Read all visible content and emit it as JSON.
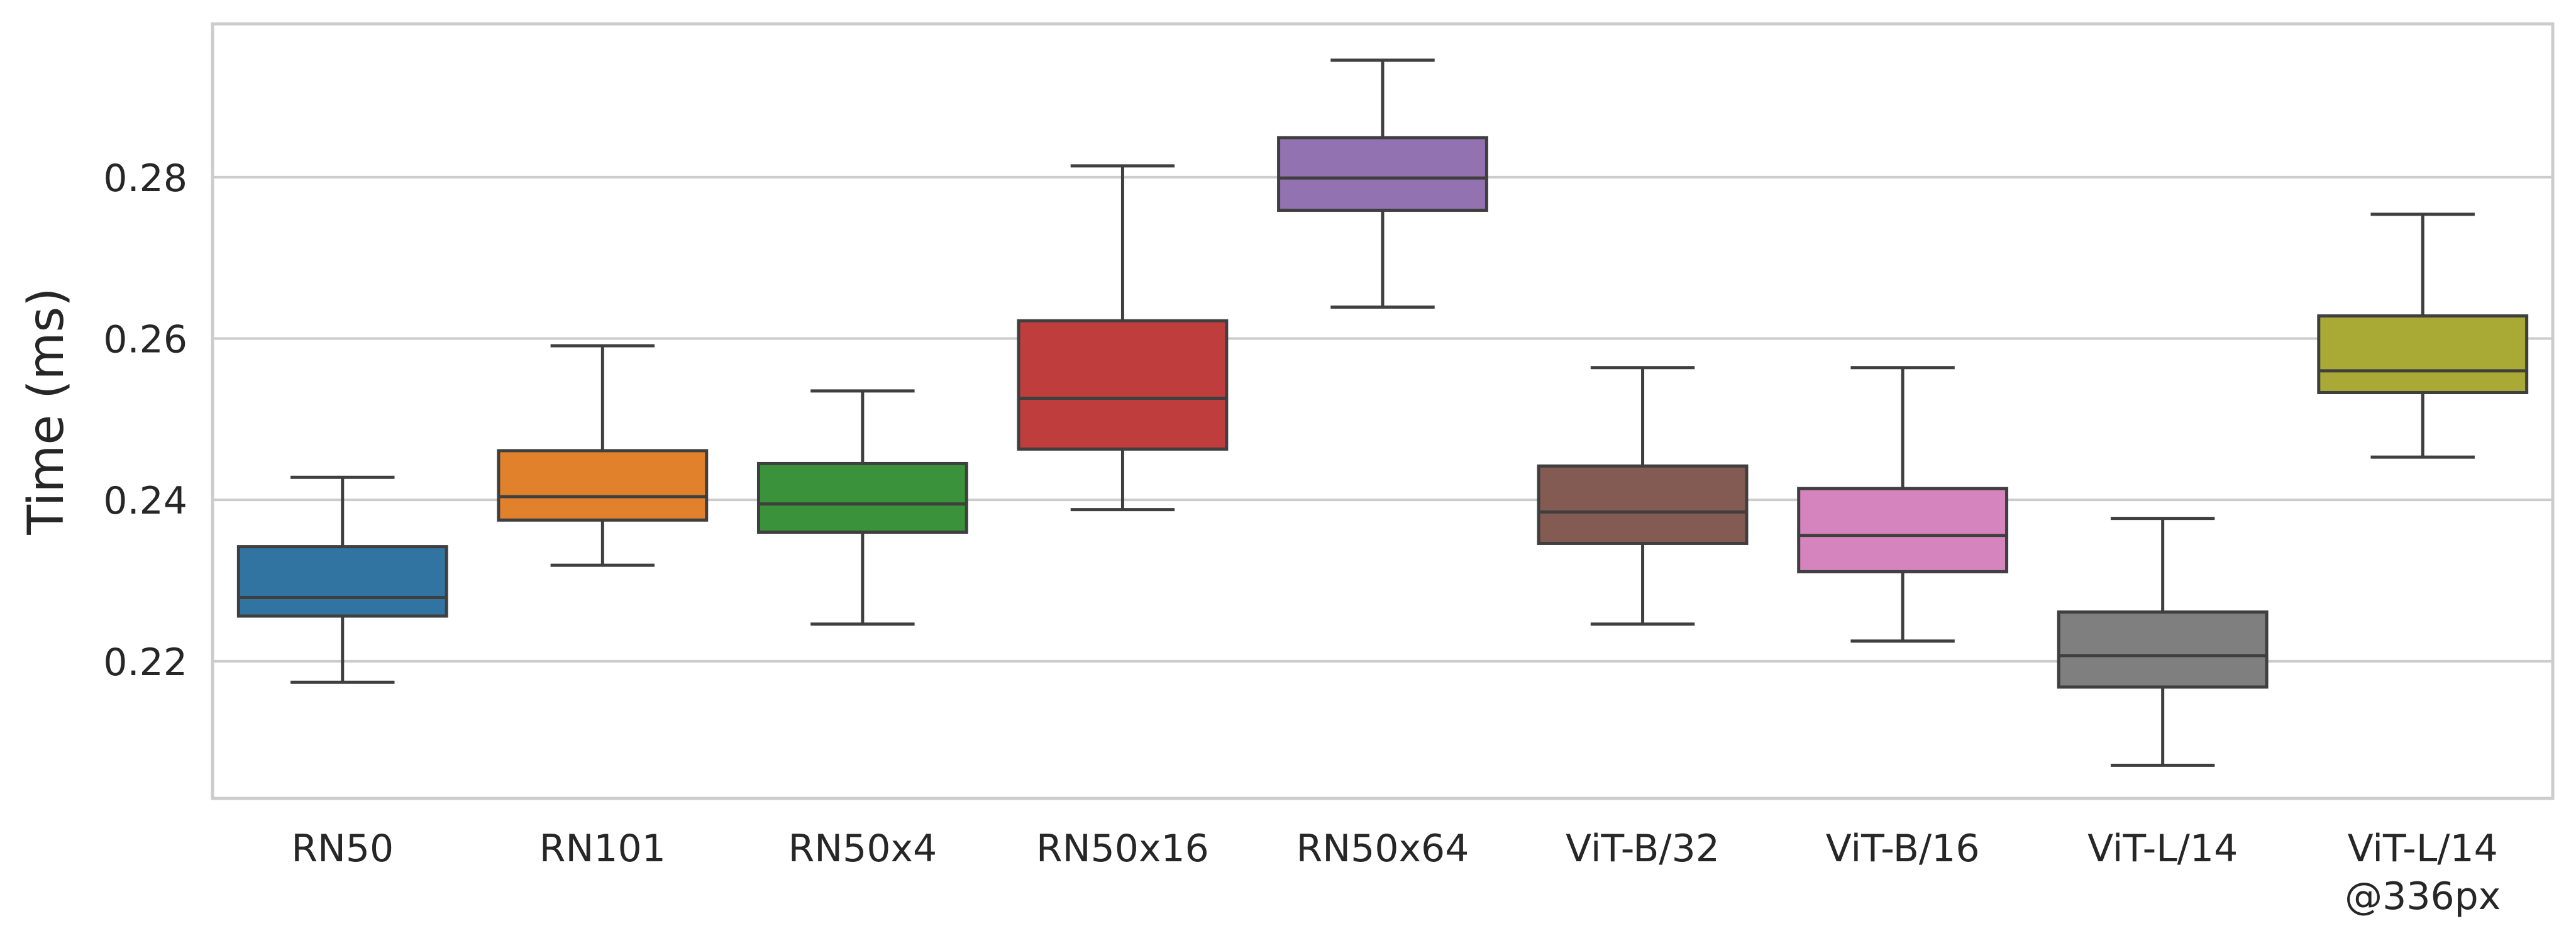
{
  "chart_data": {
    "type": "box",
    "title": "",
    "xlabel": "",
    "ylabel": "Time (ms)",
    "ylim": [
      0.203,
      0.299
    ],
    "yticks": [
      "0.22",
      "0.24",
      "0.26",
      "0.28"
    ],
    "grid": "horizontal",
    "categories": [
      {
        "lines": [
          "RN50"
        ]
      },
      {
        "lines": [
          "RN101"
        ]
      },
      {
        "lines": [
          "RN50x4"
        ]
      },
      {
        "lines": [
          "RN50x16"
        ]
      },
      {
        "lines": [
          "RN50x64"
        ]
      },
      {
        "lines": [
          "ViT-B/32"
        ]
      },
      {
        "lines": [
          "ViT-B/16"
        ]
      },
      {
        "lines": [
          "ViT-L/14"
        ]
      },
      {
        "lines": [
          "ViT-L/14",
          "@336px"
        ]
      }
    ],
    "boxes": [
      {
        "whislo": 0.2174,
        "q1": 0.2256,
        "med": 0.2279,
        "q3": 0.2342,
        "whishi": 0.2428,
        "color": "#3274a1"
      },
      {
        "whislo": 0.2319,
        "q1": 0.2375,
        "med": 0.2404,
        "q3": 0.2461,
        "whishi": 0.2591,
        "color": "#e1812c"
      },
      {
        "whislo": 0.2246,
        "q1": 0.236,
        "med": 0.2395,
        "q3": 0.2445,
        "whishi": 0.2535,
        "color": "#3a923a"
      },
      {
        "whislo": 0.2388,
        "q1": 0.2463,
        "med": 0.2526,
        "q3": 0.2622,
        "whishi": 0.2814,
        "color": "#c03d3e"
      },
      {
        "whislo": 0.2639,
        "q1": 0.2759,
        "med": 0.2799,
        "q3": 0.2849,
        "whishi": 0.2945,
        "color": "#9372b2"
      },
      {
        "whislo": 0.2246,
        "q1": 0.2346,
        "med": 0.2385,
        "q3": 0.2442,
        "whishi": 0.2564,
        "color": "#845b53"
      },
      {
        "whislo": 0.2225,
        "q1": 0.2311,
        "med": 0.2356,
        "q3": 0.2414,
        "whishi": 0.2564,
        "color": "#d684bd"
      },
      {
        "whislo": 0.2071,
        "q1": 0.2168,
        "med": 0.2207,
        "q3": 0.2261,
        "whishi": 0.2377,
        "color": "#7f7f7f"
      },
      {
        "whislo": 0.2453,
        "q1": 0.2533,
        "med": 0.256,
        "q3": 0.2628,
        "whishi": 0.2754,
        "color": "#a9aa35"
      }
    ]
  }
}
